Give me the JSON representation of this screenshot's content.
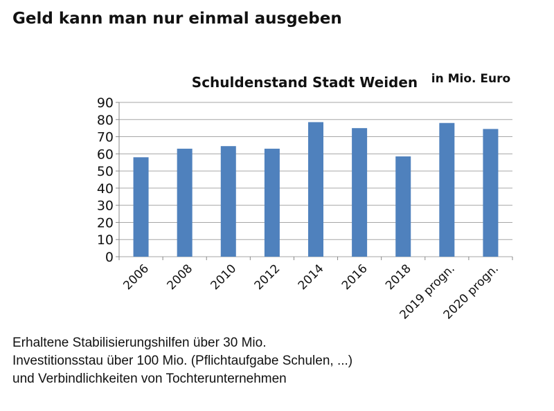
{
  "slide_title": "Geld kann man nur einmal ausgeben",
  "chart_data": {
    "type": "bar",
    "title": "Schuldenstand Stadt Weiden",
    "unit_label": "in Mio. Euro",
    "categories": [
      "2006",
      "2008",
      "2010",
      "2012",
      "2014",
      "2016",
      "2018",
      "2019 progn.",
      "2020 progn."
    ],
    "values": [
      58,
      63,
      64.5,
      63,
      78.5,
      75,
      58.5,
      78,
      74.5
    ],
    "ylim": [
      0,
      90
    ],
    "yticks": [
      "0",
      "10",
      "20",
      "30",
      "40",
      "50",
      "60",
      "70",
      "80",
      "90"
    ],
    "grid": true,
    "bar_color": "#4f81bd",
    "xlabel": "",
    "ylabel": ""
  },
  "notes": [
    "Erhaltene Stabilisierungshilfen über 30 Mio.",
    "Investitionsstau über 100 Mio. (Pflichtaufgabe Schulen, ...)",
    "und Verbindlichkeiten von Tochterunternehmen"
  ]
}
